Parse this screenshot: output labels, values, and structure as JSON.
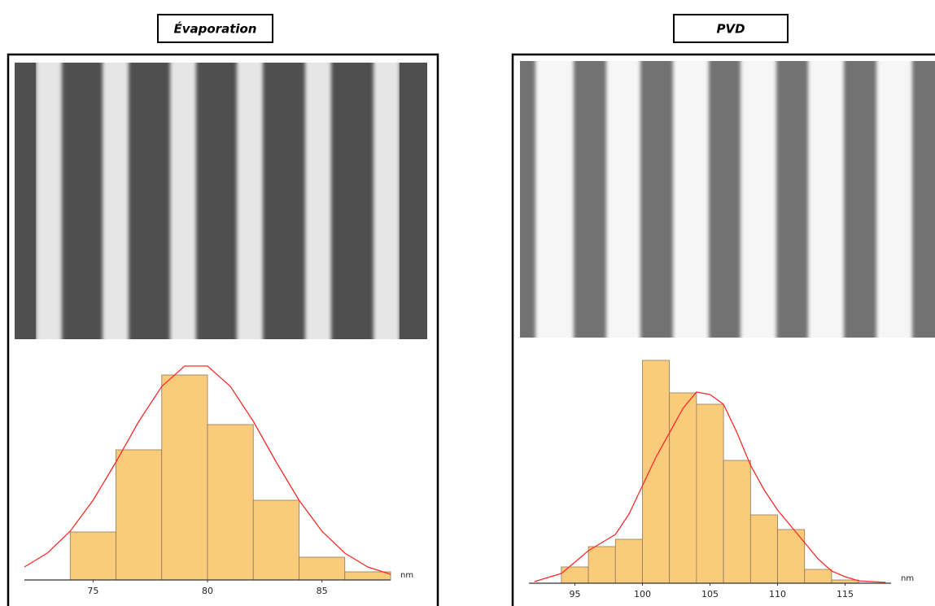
{
  "chart_data": [
    {
      "type": "histogram",
      "title": "Évaporation",
      "x_label": "nm",
      "bins": [
        74,
        76,
        78,
        80,
        82,
        84,
        86,
        88
      ],
      "values": [
        59,
        160,
        252,
        191,
        98,
        28,
        10
      ],
      "color": "#fbcb7c",
      "edge_color": "#8a7a5a",
      "curve": {
        "color": "#ff2a2a",
        "x": [
          72,
          73,
          74,
          75,
          76,
          77,
          78,
          79,
          80,
          81,
          82,
          83,
          84,
          85,
          86,
          87,
          88
        ],
        "values": [
          16,
          33,
          60,
          98,
          145,
          195,
          238,
          263,
          263,
          238,
          195,
          145,
          98,
          60,
          33,
          16,
          7
        ]
      },
      "xlim": [
        72,
        88
      ],
      "xticks": [
        75,
        80,
        85
      ],
      "ylim": [
        0,
        300
      ]
    },
    {
      "type": "histogram",
      "title": "PVD",
      "x_label": "nm",
      "bins": [
        94,
        96,
        98,
        100,
        102,
        104,
        106,
        108,
        110,
        112,
        114,
        116
      ],
      "values": [
        20,
        45,
        54,
        274,
        234,
        220,
        151,
        84,
        66,
        17,
        4
      ],
      "color": "#fbcb7c",
      "edge_color": "#8a7a5a",
      "curve": {
        "color": "#ff2a2a",
        "x": [
          92,
          94,
          96,
          97,
          98,
          99,
          100,
          101,
          102,
          103,
          104,
          105,
          106,
          107,
          108,
          109,
          110,
          111,
          112,
          113,
          114,
          115,
          116,
          118
        ],
        "values": [
          2,
          12,
          40,
          50,
          60,
          85,
          120,
          155,
          185,
          215,
          235,
          232,
          220,
          185,
          145,
          115,
          90,
          70,
          50,
          30,
          15,
          8,
          3,
          1
        ]
      },
      "xlim": [
        91.6,
        118.4
      ],
      "xticks": [
        95,
        100,
        105,
        110,
        115
      ],
      "ylim": [
        0,
        300
      ]
    }
  ]
}
